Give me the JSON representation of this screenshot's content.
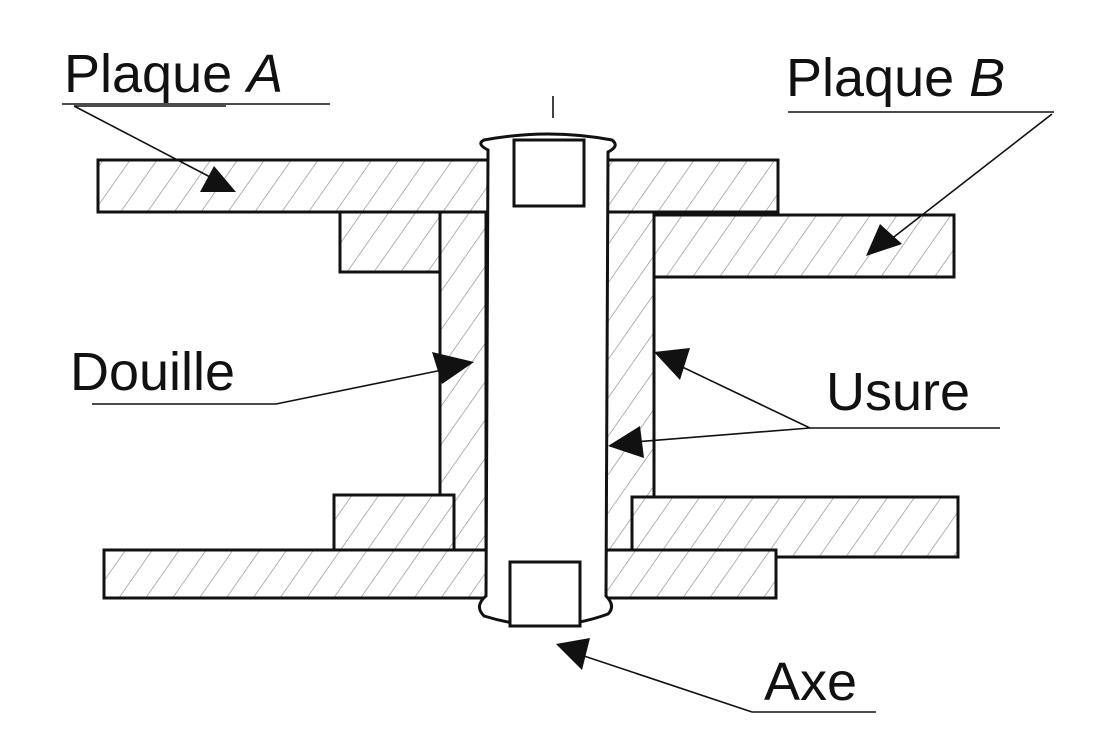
{
  "diagram": {
    "labels": {
      "plaque_a_word": "Plaque",
      "plaque_a_letter": "A",
      "plaque_b_word": "Plaque",
      "plaque_b_letter": "B",
      "douille": "Douille",
      "usure": "Usure",
      "axe": "Axe"
    },
    "colors": {
      "line": "#111111",
      "hatch": "#8a8a8a",
      "background": "#ffffff"
    }
  }
}
